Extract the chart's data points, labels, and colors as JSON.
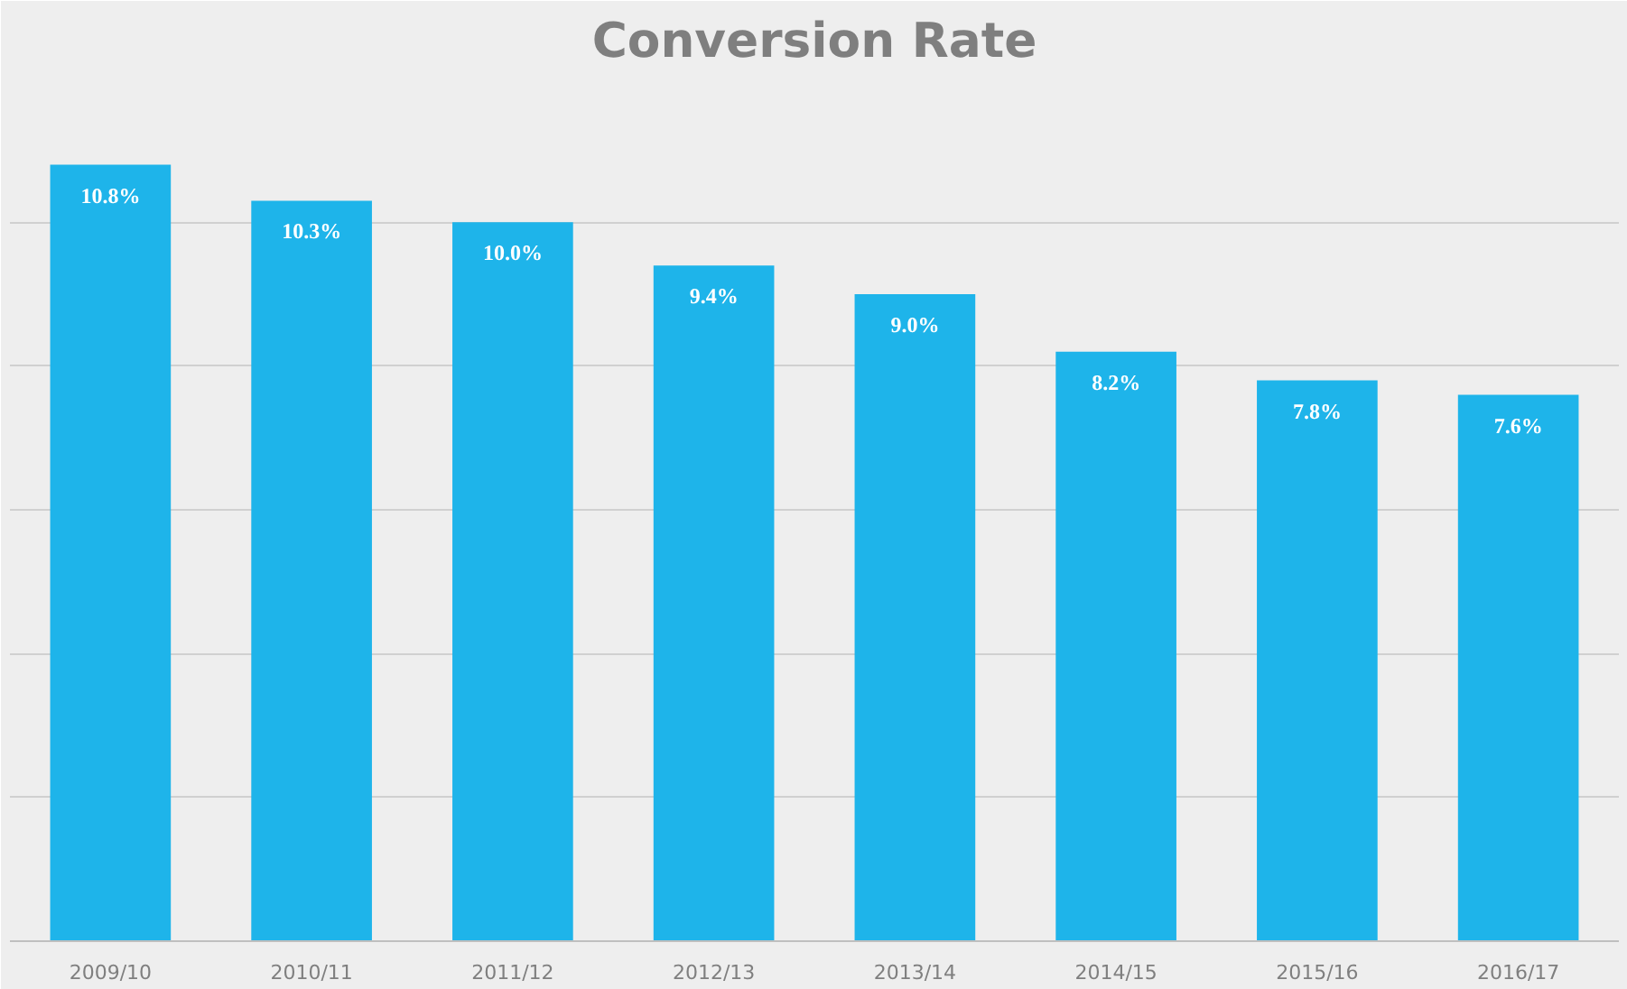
{
  "chart_data": {
    "type": "bar",
    "title": "Conversion Rate",
    "categories": [
      "2009/10",
      "2010/11",
      "2011/12",
      "2012/13",
      "2013/14",
      "2014/15",
      "2015/16",
      "2016/17"
    ],
    "values": [
      10.8,
      10.3,
      10.0,
      9.4,
      9.0,
      8.2,
      7.8,
      7.6
    ],
    "value_labels": [
      "10.8%",
      "10.3%",
      "10.0%",
      "9.4%",
      "9.0%",
      "8.2%",
      "7.8%",
      "7.6%"
    ],
    "color": "#1eb4ea",
    "ylim": [
      0,
      12
    ],
    "yticks": [
      {
        "value": 0,
        "label": null
      },
      {
        "value": 2,
        "label": null
      },
      {
        "value": 4,
        "label": null
      },
      {
        "value": 6,
        "label": null
      },
      {
        "value": 8,
        "label": null
      },
      {
        "value": 10,
        "label": null
      },
      {
        "value": 12,
        "label": null
      }
    ],
    "grid": "y",
    "tick_labels": "x"
  }
}
